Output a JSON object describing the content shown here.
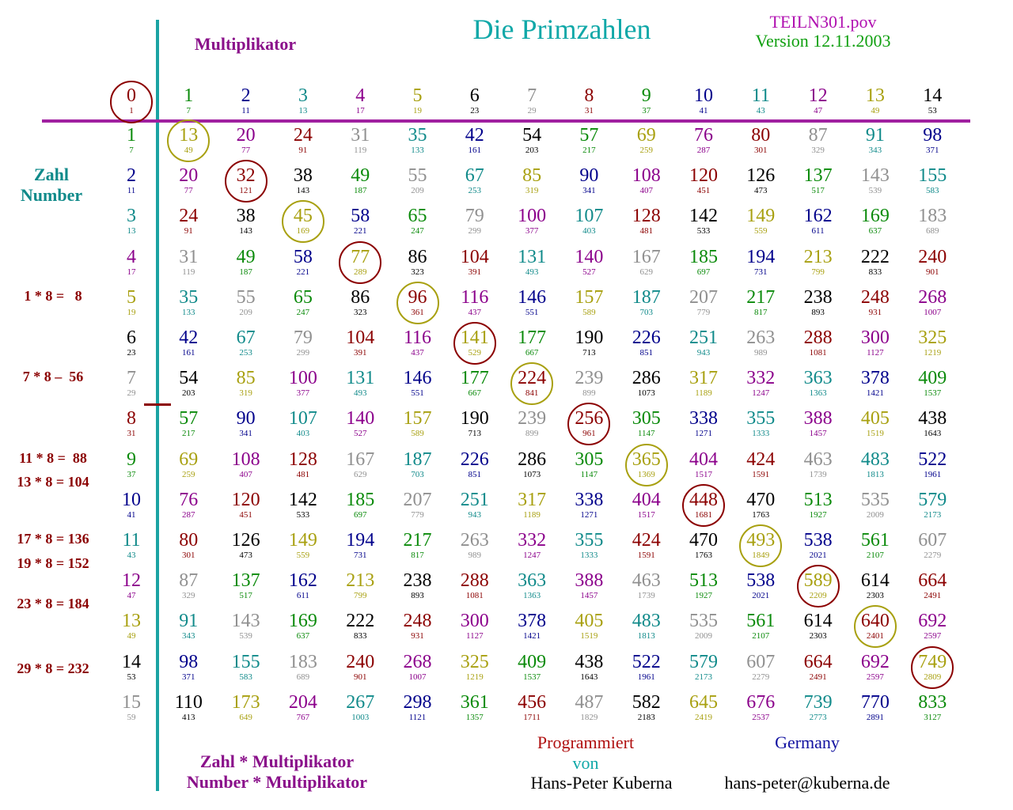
{
  "title": "Die Primzahlen",
  "file_name": "TEILN301.pov",
  "version": "Version 12.11.2003",
  "multiplier_label": "Multiplikator",
  "number_label_de": "Zahl",
  "number_label_en": "Number",
  "footer": {
    "formula_de": "Zahl * Multiplikator",
    "formula_en": "Number * Multiplikator",
    "programmed": "Programmiert",
    "by": "von",
    "author": "Hans-Peter Kuberna",
    "country": "Germany",
    "email": "hans-peter@kuberna.de"
  },
  "notes": [
    {
      "text": "1 * 8 =   8",
      "row": 5
    },
    {
      "text": "7 * 8 –  56",
      "row": 7
    },
    {
      "text": "11 * 8 =  88",
      "row": 9
    },
    {
      "text": "13 * 8 = 104",
      "row": 9.6
    },
    {
      "text": "17 * 8 = 136",
      "row": 11
    },
    {
      "text": "19 * 8 = 152",
      "row": 11.6
    },
    {
      "text": "23 * 8 = 184",
      "row": 12.6
    },
    {
      "text": "29 * 8 = 232",
      "row": 14.2
    }
  ],
  "colors": {
    "axis_vertical": "#1aa3a3",
    "axis_horizontal": "#a020a0",
    "title": "#10a8a8",
    "file_name": "#b010b0",
    "version": "#10a010",
    "multiplier_label": "#8a108a",
    "number_label": "#108a8a",
    "notes": "#8b0000",
    "formula": "#8a108a",
    "programmed": "#b01010",
    "by": "#10a8a8",
    "author": "#000000",
    "country": "#1010a0",
    "email": "#000000",
    "ring_red": "#8b0000",
    "ring_olive": "#a8a010",
    "tick": "#8b0000"
  },
  "palette": [
    "#8b0000",
    "#0a8a0a",
    "#00008b",
    "#108a8a",
    "#8b008b",
    "#a8a010",
    "#000000",
    "#909090",
    "#8b0000",
    "#0a8a0a",
    "#00008b",
    "#108a8a",
    "#8b008b",
    "#a8a010",
    "#000000",
    "#909090"
  ],
  "multipliers": [
    {
      "v": 0,
      "p": 1
    },
    {
      "v": 1,
      "p": 7
    },
    {
      "v": 2,
      "p": 11
    },
    {
      "v": 3,
      "p": 13
    },
    {
      "v": 4,
      "p": 17
    },
    {
      "v": 5,
      "p": 19
    },
    {
      "v": 6,
      "p": 23
    },
    {
      "v": 7,
      "p": 29
    },
    {
      "v": 8,
      "p": 31
    },
    {
      "v": 9,
      "p": 37
    },
    {
      "v": 10,
      "p": 41
    },
    {
      "v": 11,
      "p": 43
    },
    {
      "v": 12,
      "p": 47
    },
    {
      "v": 13,
      "p": 49
    },
    {
      "v": 14,
      "p": 53
    }
  ],
  "rows": [
    {
      "n": 1,
      "p": 7,
      "cells": [
        [
          13,
          49
        ],
        [
          20,
          77
        ],
        [
          24,
          91
        ],
        [
          31,
          119
        ],
        [
          35,
          133
        ],
        [
          42,
          161
        ],
        [
          54,
          203
        ],
        [
          57,
          217
        ],
        [
          69,
          259
        ],
        [
          76,
          287
        ],
        [
          80,
          301
        ],
        [
          87,
          329
        ],
        [
          91,
          343
        ],
        [
          98,
          371
        ]
      ]
    },
    {
      "n": 2,
      "p": 11,
      "cells": [
        [
          20,
          77
        ],
        [
          32,
          121
        ],
        [
          38,
          143
        ],
        [
          49,
          187
        ],
        [
          55,
          209
        ],
        [
          67,
          253
        ],
        [
          85,
          319
        ],
        [
          90,
          341
        ],
        [
          108,
          407
        ],
        [
          120,
          451
        ],
        [
          126,
          473
        ],
        [
          137,
          517
        ],
        [
          143,
          539
        ],
        [
          155,
          583
        ]
      ]
    },
    {
      "n": 3,
      "p": 13,
      "cells": [
        [
          24,
          91
        ],
        [
          38,
          143
        ],
        [
          45,
          169
        ],
        [
          58,
          221
        ],
        [
          65,
          247
        ],
        [
          79,
          299
        ],
        [
          100,
          377
        ],
        [
          107,
          403
        ],
        [
          128,
          481
        ],
        [
          142,
          533
        ],
        [
          149,
          559
        ],
        [
          162,
          611
        ],
        [
          169,
          637
        ],
        [
          183,
          689
        ]
      ]
    },
    {
      "n": 4,
      "p": 17,
      "cells": [
        [
          31,
          119
        ],
        [
          49,
          187
        ],
        [
          58,
          221
        ],
        [
          77,
          289
        ],
        [
          86,
          323
        ],
        [
          104,
          391
        ],
        [
          131,
          493
        ],
        [
          140,
          527
        ],
        [
          167,
          629
        ],
        [
          185,
          697
        ],
        [
          194,
          731
        ],
        [
          213,
          799
        ],
        [
          222,
          833
        ],
        [
          240,
          901
        ]
      ]
    },
    {
      "n": 5,
      "p": 19,
      "cells": [
        [
          35,
          133
        ],
        [
          55,
          209
        ],
        [
          65,
          247
        ],
        [
          86,
          323
        ],
        [
          96,
          361
        ],
        [
          116,
          437
        ],
        [
          146,
          551
        ],
        [
          157,
          589
        ],
        [
          187,
          703
        ],
        [
          207,
          779
        ],
        [
          217,
          817
        ],
        [
          238,
          893
        ],
        [
          248,
          931
        ],
        [
          268,
          1007
        ]
      ]
    },
    {
      "n": 6,
      "p": 23,
      "cells": [
        [
          42,
          161
        ],
        [
          67,
          253
        ],
        [
          79,
          299
        ],
        [
          104,
          391
        ],
        [
          116,
          437
        ],
        [
          141,
          529
        ],
        [
          177,
          667
        ],
        [
          190,
          713
        ],
        [
          226,
          851
        ],
        [
          251,
          943
        ],
        [
          263,
          989
        ],
        [
          288,
          1081
        ],
        [
          300,
          1127
        ],
        [
          325,
          1219
        ]
      ]
    },
    {
      "n": 7,
      "p": 29,
      "cells": [
        [
          54,
          203
        ],
        [
          85,
          319
        ],
        [
          100,
          377
        ],
        [
          131,
          493
        ],
        [
          146,
          551
        ],
        [
          177,
          667
        ],
        [
          224,
          841
        ],
        [
          239,
          899
        ],
        [
          286,
          1073
        ],
        [
          317,
          1189
        ],
        [
          332,
          1247
        ],
        [
          363,
          1363
        ],
        [
          378,
          1421
        ],
        [
          409,
          1537
        ]
      ]
    },
    {
      "n": 8,
      "p": 31,
      "cells": [
        [
          57,
          217
        ],
        [
          90,
          341
        ],
        [
          107,
          403
        ],
        [
          140,
          527
        ],
        [
          157,
          589
        ],
        [
          190,
          713
        ],
        [
          239,
          899
        ],
        [
          256,
          961
        ],
        [
          305,
          1147
        ],
        [
          338,
          1271
        ],
        [
          355,
          1333
        ],
        [
          388,
          1457
        ],
        [
          405,
          1519
        ],
        [
          438,
          1643
        ]
      ]
    },
    {
      "n": 9,
      "p": 37,
      "cells": [
        [
          69,
          259
        ],
        [
          108,
          407
        ],
        [
          128,
          481
        ],
        [
          167,
          629
        ],
        [
          187,
          703
        ],
        [
          226,
          851
        ],
        [
          286,
          1073
        ],
        [
          305,
          1147
        ],
        [
          365,
          1369
        ],
        [
          404,
          1517
        ],
        [
          424,
          1591
        ],
        [
          463,
          1739
        ],
        [
          483,
          1813
        ],
        [
          522,
          1961
        ]
      ]
    },
    {
      "n": 10,
      "p": 41,
      "cells": [
        [
          76,
          287
        ],
        [
          120,
          451
        ],
        [
          142,
          533
        ],
        [
          185,
          697
        ],
        [
          207,
          779
        ],
        [
          251,
          943
        ],
        [
          317,
          1189
        ],
        [
          338,
          1271
        ],
        [
          404,
          1517
        ],
        [
          448,
          1681
        ],
        [
          470,
          1763
        ],
        [
          513,
          1927
        ],
        [
          535,
          2009
        ],
        [
          579,
          2173
        ]
      ]
    },
    {
      "n": 11,
      "p": 43,
      "cells": [
        [
          80,
          301
        ],
        [
          126,
          473
        ],
        [
          149,
          559
        ],
        [
          194,
          731
        ],
        [
          217,
          817
        ],
        [
          263,
          989
        ],
        [
          332,
          1247
        ],
        [
          355,
          1333
        ],
        [
          424,
          1591
        ],
        [
          470,
          1763
        ],
        [
          493,
          1849
        ],
        [
          538,
          2021
        ],
        [
          561,
          2107
        ],
        [
          607,
          2279
        ]
      ]
    },
    {
      "n": 12,
      "p": 47,
      "cells": [
        [
          87,
          329
        ],
        [
          137,
          517
        ],
        [
          162,
          611
        ],
        [
          213,
          799
        ],
        [
          238,
          893
        ],
        [
          288,
          1081
        ],
        [
          363,
          1363
        ],
        [
          388,
          1457
        ],
        [
          463,
          1739
        ],
        [
          513,
          1927
        ],
        [
          538,
          2021
        ],
        [
          589,
          2209
        ],
        [
          614,
          2303
        ],
        [
          664,
          2491
        ]
      ]
    },
    {
      "n": 13,
      "p": 49,
      "cells": [
        [
          91,
          343
        ],
        [
          143,
          539
        ],
        [
          169,
          637
        ],
        [
          222,
          833
        ],
        [
          248,
          931
        ],
        [
          300,
          1127
        ],
        [
          378,
          1421
        ],
        [
          405,
          1519
        ],
        [
          483,
          1813
        ],
        [
          535,
          2009
        ],
        [
          561,
          2107
        ],
        [
          614,
          2303
        ],
        [
          640,
          2401
        ],
        [
          692,
          2597
        ]
      ]
    },
    {
      "n": 14,
      "p": 53,
      "cells": [
        [
          98,
          371
        ],
        [
          155,
          583
        ],
        [
          183,
          689
        ],
        [
          240,
          901
        ],
        [
          268,
          1007
        ],
        [
          325,
          1219
        ],
        [
          409,
          1537
        ],
        [
          438,
          1643
        ],
        [
          522,
          1961
        ],
        [
          579,
          2173
        ],
        [
          607,
          2279
        ],
        [
          664,
          2491
        ],
        [
          692,
          2597
        ],
        [
          749,
          2809
        ]
      ]
    },
    {
      "n": 15,
      "p": 59,
      "cells": [
        [
          110,
          413
        ],
        [
          173,
          649
        ],
        [
          204,
          767
        ],
        [
          267,
          1003
        ],
        [
          298,
          1121
        ],
        [
          361,
          1357
        ],
        [
          456,
          1711
        ],
        [
          487,
          1829
        ],
        [
          582,
          2183
        ],
        [
          645,
          2419
        ],
        [
          676,
          2537
        ],
        [
          739,
          2773
        ],
        [
          770,
          2891
        ],
        [
          833,
          3127
        ]
      ]
    }
  ]
}
